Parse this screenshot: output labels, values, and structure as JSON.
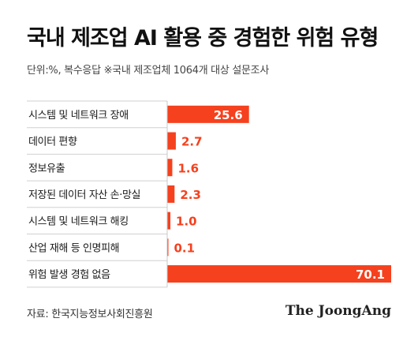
{
  "colors": {
    "bar": "#f5411e",
    "label": "#f5411e",
    "inside_label": "#ffffff",
    "row_divider": "#d0d0d0",
    "axis": "#c8c8c8"
  },
  "footer": {
    "source": "자료: 한국지능정보사회진흥원",
    "brand": "The JoongAng"
  },
  "chart_data": {
    "type": "bar",
    "orientation": "horizontal",
    "title": "국내 제조업 AI 활용 중 경험한 위험 유형",
    "subtitle": "단위:%, 복수응답  ※국내 제조업체 1064개 대상 설문조사",
    "categories": [
      "시스템 및 네트워크 장애",
      "데이터 편향",
      "정보유출",
      "저장된 데이터 자산 손·망실",
      "시스템 및 네트워크 해킹",
      "산업 재해 등 인명피해",
      "위험 발생 경험 없음"
    ],
    "values": [
      25.6,
      2.7,
      1.6,
      2.3,
      1.0,
      0.1,
      70.1
    ],
    "value_labels": [
      "25.6",
      "2.7",
      "1.6",
      "2.3",
      "1.0",
      "0.1",
      "70.1"
    ],
    "xlim": [
      0,
      70.1
    ],
    "grid": false,
    "legend": "none"
  }
}
